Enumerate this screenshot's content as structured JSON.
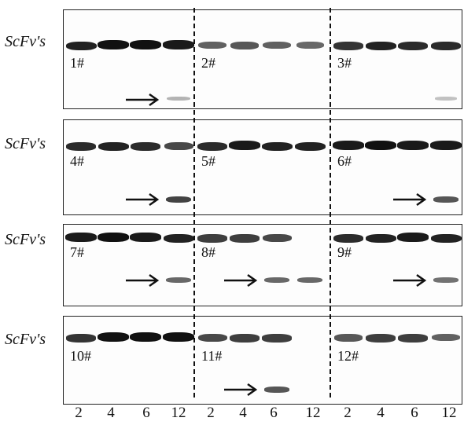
{
  "panels": [
    {
      "row_label": "ScFv's",
      "groups": [
        {
          "label": "1#",
          "band_intensity": [
            0.9,
            1.0,
            1.0,
            0.95
          ],
          "lower_band_intensity": [
            0,
            0,
            0,
            0.2
          ],
          "arrow": true
        },
        {
          "label": "2#",
          "band_intensity": [
            0.55,
            0.6,
            0.55,
            0.5
          ],
          "lower_band_intensity": [
            0,
            0,
            0,
            0
          ],
          "arrow": false
        },
        {
          "label": "3#",
          "band_intensity": [
            0.8,
            0.9,
            0.85,
            0.85
          ],
          "lower_band_intensity": [
            0,
            0,
            0,
            0.12
          ],
          "arrow": false
        }
      ]
    },
    {
      "row_label": "ScFv's",
      "groups": [
        {
          "label": "4#",
          "band_intensity": [
            0.85,
            0.9,
            0.85,
            0.7
          ],
          "lower_band_intensity": [
            0,
            0,
            0,
            0.8
          ],
          "arrow": true
        },
        {
          "label": "5#",
          "band_intensity": [
            0.85,
            0.95,
            0.9,
            0.9
          ],
          "lower_band_intensity": [
            0,
            0,
            0,
            0
          ],
          "arrow": false
        },
        {
          "label": "6#",
          "band_intensity": [
            0.95,
            1.0,
            0.95,
            0.95
          ],
          "lower_band_intensity": [
            0,
            0,
            0,
            0.7
          ],
          "arrow": true
        }
      ]
    },
    {
      "row_label": "ScFv's",
      "groups": [
        {
          "label": "7#",
          "band_intensity": [
            0.95,
            1.0,
            0.95,
            0.9
          ],
          "lower_band_intensity": [
            0,
            0,
            0,
            0.6
          ],
          "arrow": true
        },
        {
          "label": "8#",
          "band_intensity": [
            0.75,
            0.75,
            0.7,
            0
          ],
          "lower_band_intensity": [
            0,
            0,
            0.6,
            0.6
          ],
          "arrow": true
        },
        {
          "label": "9#",
          "band_intensity": [
            0.85,
            0.9,
            0.95,
            0.9
          ],
          "lower_band_intensity": [
            0,
            0,
            0,
            0.55
          ],
          "arrow": true
        }
      ]
    },
    {
      "row_label": "ScFv's",
      "groups": [
        {
          "label": "10#",
          "band_intensity": [
            0.8,
            1.0,
            1.0,
            1.0
          ],
          "lower_band_intensity": [
            0,
            0,
            0,
            0
          ],
          "arrow": false
        },
        {
          "label": "11#",
          "band_intensity": [
            0.7,
            0.75,
            0.75,
            0
          ],
          "lower_band_intensity": [
            0,
            0,
            0.7,
            0
          ],
          "arrow": true
        },
        {
          "label": "12#",
          "band_intensity": [
            0.6,
            0.75,
            0.75,
            0.55
          ],
          "lower_band_intensity": [
            0,
            0,
            0,
            0
          ],
          "arrow": false
        }
      ]
    }
  ],
  "lane_labels": [
    "2",
    "4",
    "6",
    "12",
    "2",
    "4",
    "6",
    "12",
    "2",
    "4",
    "6",
    "12"
  ],
  "colors": {
    "band": "#111111",
    "background": "#ffffff",
    "border": "#222222"
  }
}
